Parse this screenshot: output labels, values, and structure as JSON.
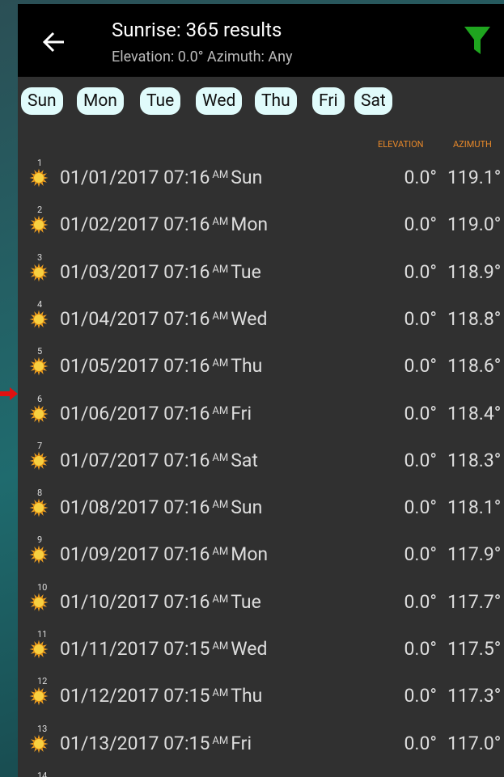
{
  "header": {
    "title": "Sunrise: 365 results",
    "subtitle": "Elevation: 0.0° Azimuth: Any"
  },
  "day_filters": [
    "Sun",
    "Mon",
    "Tue",
    "Wed",
    "Thu",
    "Fri",
    "Sat"
  ],
  "columns": {
    "elevation": "ELEVATION",
    "azimuth": "AZIMUTH"
  },
  "rows": [
    {
      "index": "1",
      "date": "01/01/2017",
      "time": "07:16",
      "ampm": "AM",
      "day": "Sun",
      "elevation": "0.0°",
      "azimuth": "119.1°"
    },
    {
      "index": "2",
      "date": "01/02/2017",
      "time": "07:16",
      "ampm": "AM",
      "day": "Mon",
      "elevation": "0.0°",
      "azimuth": "119.0°"
    },
    {
      "index": "3",
      "date": "01/03/2017",
      "time": "07:16",
      "ampm": "AM",
      "day": "Tue",
      "elevation": "0.0°",
      "azimuth": "118.9°"
    },
    {
      "index": "4",
      "date": "01/04/2017",
      "time": "07:16",
      "ampm": "AM",
      "day": "Wed",
      "elevation": "0.0°",
      "azimuth": "118.8°"
    },
    {
      "index": "5",
      "date": "01/05/2017",
      "time": "07:16",
      "ampm": "AM",
      "day": "Thu",
      "elevation": "0.0°",
      "azimuth": "118.6°"
    },
    {
      "index": "6",
      "date": "01/06/2017",
      "time": "07:16",
      "ampm": "AM",
      "day": "Fri",
      "elevation": "0.0°",
      "azimuth": "118.4°"
    },
    {
      "index": "7",
      "date": "01/07/2017",
      "time": "07:16",
      "ampm": "AM",
      "day": "Sat",
      "elevation": "0.0°",
      "azimuth": "118.3°"
    },
    {
      "index": "8",
      "date": "01/08/2017",
      "time": "07:16",
      "ampm": "AM",
      "day": "Sun",
      "elevation": "0.0°",
      "azimuth": "118.1°"
    },
    {
      "index": "9",
      "date": "01/09/2017",
      "time": "07:16",
      "ampm": "AM",
      "day": "Mon",
      "elevation": "0.0°",
      "azimuth": "117.9°"
    },
    {
      "index": "10",
      "date": "01/10/2017",
      "time": "07:16",
      "ampm": "AM",
      "day": "Tue",
      "elevation": "0.0°",
      "azimuth": "117.7°"
    },
    {
      "index": "11",
      "date": "01/11/2017",
      "time": "07:15",
      "ampm": "AM",
      "day": "Wed",
      "elevation": "0.0°",
      "azimuth": "117.5°"
    },
    {
      "index": "12",
      "date": "01/12/2017",
      "time": "07:15",
      "ampm": "AM",
      "day": "Thu",
      "elevation": "0.0°",
      "azimuth": "117.3°"
    },
    {
      "index": "13",
      "date": "01/13/2017",
      "time": "07:15",
      "ampm": "AM",
      "day": "Fri",
      "elevation": "0.0°",
      "azimuth": "117.0°"
    }
  ],
  "next_index": "14"
}
